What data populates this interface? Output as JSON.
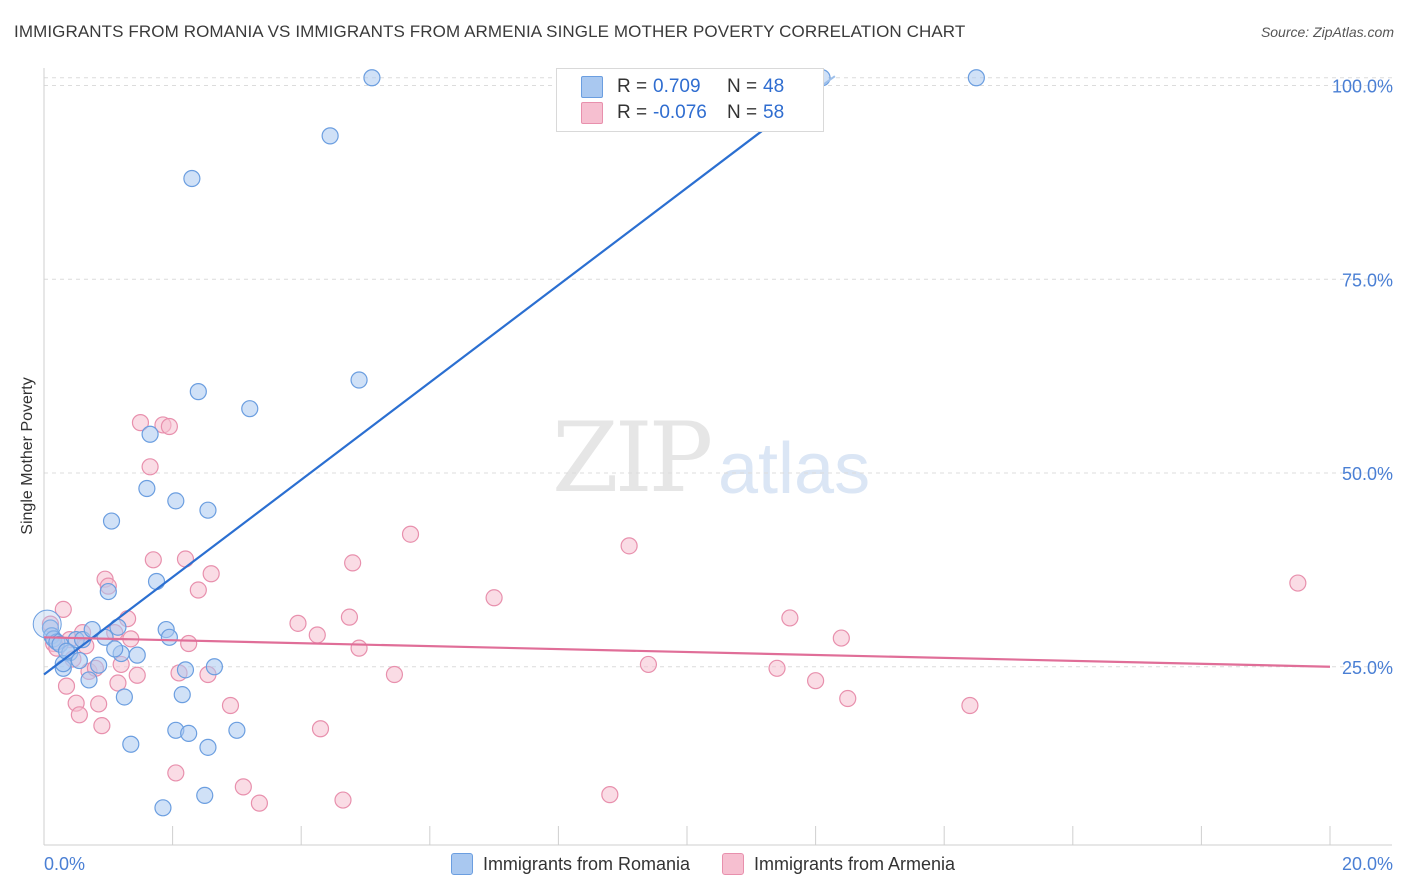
{
  "title": "IMMIGRANTS FROM ROMANIA VS IMMIGRANTS FROM ARMENIA SINGLE MOTHER POVERTY CORRELATION CHART",
  "source": "Source: ZipAtlas.com",
  "watermark": {
    "zip": "ZIP",
    "atlas": "atlas"
  },
  "legend": {
    "r_label": "R =",
    "n_label": "N =",
    "romania": {
      "r": "0.709",
      "n": "48"
    },
    "armenia": {
      "r": "-0.076",
      "n": "58"
    }
  },
  "colors": {
    "romania_fill": "#a9c8f0",
    "romania_stroke": "#6b9ee0",
    "romania_line": "#2b6fd1",
    "armenia_fill": "#f6bfd0",
    "armenia_stroke": "#e890ad",
    "armenia_line": "#e06e98",
    "grid": "#dcdcdc",
    "tick_text": "#4a7fd4"
  },
  "chart_data": {
    "type": "scatter",
    "title": "IMMIGRANTS FROM ROMANIA VS IMMIGRANTS FROM ARMENIA SINGLE MOTHER POVERTY CORRELATION CHART",
    "xlabel": "",
    "ylabel": "Single Mother Poverty",
    "xlim": [
      0,
      20
    ],
    "ylim": [
      2,
      102
    ],
    "y_ticks": [
      25,
      50,
      75,
      100
    ],
    "y_tick_labels": [
      "25.0%",
      "50.0%",
      "75.0%",
      "100.0%"
    ],
    "x_tick_labels": {
      "left": "0.0%",
      "right": "20.0%"
    },
    "series": [
      {
        "name": "Immigrants from Romania",
        "r": 0.709,
        "n": 48,
        "trend": {
          "x": [
            0.0,
            12.1
          ],
          "y": [
            24.0,
            100.0
          ]
        },
        "trend_extension": {
          "x": [
            12.1,
            12.3
          ],
          "y": [
            100.0,
            101.2
          ]
        },
        "points": [
          [
            0.1,
            30.0
          ],
          [
            0.12,
            29.0
          ],
          [
            0.15,
            28.6
          ],
          [
            0.2,
            28.2
          ],
          [
            0.25,
            27.9
          ],
          [
            0.3,
            24.8
          ],
          [
            0.4,
            26.8
          ],
          [
            0.5,
            28.5
          ],
          [
            0.6,
            28.5
          ],
          [
            0.7,
            23.3
          ],
          [
            0.75,
            29.8
          ],
          [
            0.85,
            25.2
          ],
          [
            0.95,
            28.8
          ],
          [
            1.0,
            34.7
          ],
          [
            1.05,
            43.8
          ],
          [
            1.15,
            30.1
          ],
          [
            1.2,
            26.7
          ],
          [
            1.25,
            21.1
          ],
          [
            1.35,
            15.0
          ],
          [
            1.45,
            26.5
          ],
          [
            1.6,
            48.0
          ],
          [
            1.65,
            55.0
          ],
          [
            1.75,
            36.0
          ],
          [
            1.85,
            6.8
          ],
          [
            1.9,
            29.8
          ],
          [
            1.95,
            28.8
          ],
          [
            2.05,
            16.8
          ],
          [
            2.05,
            46.4
          ],
          [
            2.15,
            21.4
          ],
          [
            2.2,
            24.6
          ],
          [
            2.25,
            16.4
          ],
          [
            2.3,
            88.0
          ],
          [
            2.4,
            60.5
          ],
          [
            2.5,
            8.4
          ],
          [
            2.55,
            45.2
          ],
          [
            2.55,
            14.6
          ],
          [
            2.65,
            25.0
          ],
          [
            3.0,
            16.8
          ],
          [
            3.2,
            58.3
          ],
          [
            4.45,
            93.5
          ],
          [
            4.9,
            62.0
          ],
          [
            5.1,
            101.0
          ],
          [
            12.1,
            101.0
          ],
          [
            14.5,
            101.0
          ],
          [
            0.3,
            25.4
          ],
          [
            0.55,
            25.8
          ],
          [
            1.1,
            27.3
          ],
          [
            0.35,
            27.0
          ]
        ]
      },
      {
        "name": "Immigrants from Armenia",
        "r": -0.076,
        "n": 58,
        "trend": {
          "x": [
            0.0,
            20.0
          ],
          "y": [
            28.8,
            25.0
          ]
        },
        "points": [
          [
            0.1,
            30.5
          ],
          [
            0.15,
            28.0
          ],
          [
            0.2,
            27.4
          ],
          [
            0.3,
            32.4
          ],
          [
            0.35,
            22.5
          ],
          [
            0.4,
            28.5
          ],
          [
            0.5,
            20.3
          ],
          [
            0.55,
            18.8
          ],
          [
            0.6,
            29.4
          ],
          [
            0.65,
            27.7
          ],
          [
            0.7,
            24.4
          ],
          [
            0.8,
            24.8
          ],
          [
            0.85,
            20.2
          ],
          [
            0.9,
            17.4
          ],
          [
            0.95,
            36.3
          ],
          [
            1.0,
            35.4
          ],
          [
            1.1,
            29.4
          ],
          [
            1.15,
            22.9
          ],
          [
            1.2,
            25.3
          ],
          [
            1.3,
            31.2
          ],
          [
            1.35,
            28.6
          ],
          [
            1.45,
            23.9
          ],
          [
            1.5,
            56.5
          ],
          [
            1.65,
            50.8
          ],
          [
            1.7,
            38.8
          ],
          [
            1.85,
            56.2
          ],
          [
            1.95,
            56.0
          ],
          [
            2.05,
            11.3
          ],
          [
            2.1,
            24.2
          ],
          [
            2.2,
            38.9
          ],
          [
            2.25,
            28.0
          ],
          [
            2.4,
            34.9
          ],
          [
            2.55,
            24.0
          ],
          [
            2.6,
            37.0
          ],
          [
            2.9,
            20.0
          ],
          [
            3.1,
            9.5
          ],
          [
            3.35,
            7.4
          ],
          [
            3.95,
            30.6
          ],
          [
            4.25,
            29.1
          ],
          [
            4.3,
            17.0
          ],
          [
            4.65,
            7.8
          ],
          [
            4.75,
            31.4
          ],
          [
            4.8,
            38.4
          ],
          [
            4.9,
            27.4
          ],
          [
            5.45,
            24.0
          ],
          [
            5.7,
            42.1
          ],
          [
            7.0,
            33.9
          ],
          [
            8.8,
            8.5
          ],
          [
            9.1,
            40.6
          ],
          [
            9.4,
            25.3
          ],
          [
            11.4,
            24.8
          ],
          [
            11.6,
            31.3
          ],
          [
            12.0,
            23.2
          ],
          [
            12.4,
            28.7
          ],
          [
            12.5,
            20.9
          ],
          [
            14.4,
            20.0
          ],
          [
            19.5,
            35.8
          ],
          [
            0.45,
            26.0
          ]
        ]
      }
    ]
  }
}
